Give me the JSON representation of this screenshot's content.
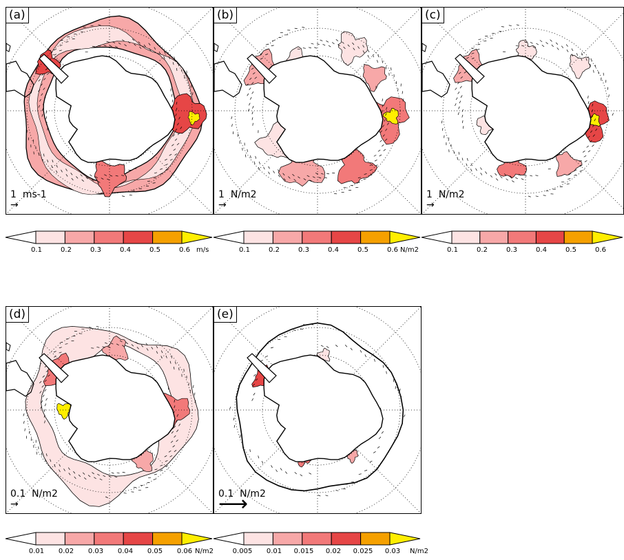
{
  "colors": {
    "c1": "#fde3e3",
    "c2": "#f7a8a8",
    "c3": "#f27979",
    "c4": "#e64646",
    "c5": "#f5a000",
    "c6": "#ffee00"
  },
  "panels": [
    {
      "id": "a",
      "label": "(a)",
      "scale_value": "1",
      "scale_unit": "ms-1"
    },
    {
      "id": "b",
      "label": "(b)",
      "scale_value": "1",
      "scale_unit": "N/m2"
    },
    {
      "id": "c",
      "label": "(c)",
      "scale_value": "1",
      "scale_unit": "N/m2"
    },
    {
      "id": "d",
      "label": "(d)",
      "scale_value": "0.1",
      "scale_unit": "N/m2"
    },
    {
      "id": "e",
      "label": "(e)",
      "scale_value": "0.1",
      "scale_unit": "N/m2"
    }
  ],
  "colorbars": [
    {
      "ticks": [
        "0.1",
        "0.2",
        "0.3",
        "0.4",
        "0.5",
        "0.6"
      ],
      "unit": "m/s"
    },
    {
      "ticks": [
        "0.1",
        "0.2",
        "0.3",
        "0.4",
        "0.5",
        "0.6"
      ],
      "unit": "N/m2"
    },
    {
      "ticks": [
        "0.1",
        "0.2",
        "0.3",
        "0.4",
        "0.5",
        "0.6"
      ],
      "unit": ""
    },
    {
      "ticks": [
        "0.01",
        "0.02",
        "0.03",
        "0.04",
        "0.05",
        "0.06"
      ],
      "unit": "N/m2"
    },
    {
      "ticks": [
        "0.005",
        "0.01",
        "0.015",
        "0.02",
        "0.025",
        "0.03"
      ],
      "unit": "N/m2"
    }
  ]
}
